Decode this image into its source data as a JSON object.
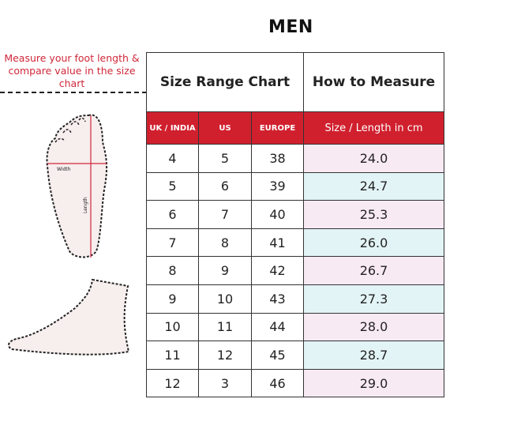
{
  "title": "MEN",
  "instruction": "Measure your foot length & compare value in the size chart",
  "diagram": {
    "width_label": "Width",
    "length_label": "Length"
  },
  "table": {
    "header_left": "Size Range Chart",
    "header_right": "How to Measure",
    "columns": [
      "UK / INDIA",
      "US",
      "EUROPE",
      "Size / Length in cm"
    ],
    "rows": [
      [
        "4",
        "5",
        "38",
        "24.0"
      ],
      [
        "5",
        "6",
        "39",
        "24.7"
      ],
      [
        "6",
        "7",
        "40",
        "25.3"
      ],
      [
        "7",
        "8",
        "41",
        "26.0"
      ],
      [
        "8",
        "9",
        "42",
        "26.7"
      ],
      [
        "9",
        "10",
        "43",
        "27.3"
      ],
      [
        "10",
        "11",
        "44",
        "28.0"
      ],
      [
        "11",
        "12",
        "45",
        "28.7"
      ],
      [
        "12",
        "3",
        "46",
        "29.0"
      ]
    ]
  },
  "colors": {
    "accent": "#d0202e",
    "row_pink": "#f8eaf3",
    "row_blue": "#e3f4f6"
  }
}
